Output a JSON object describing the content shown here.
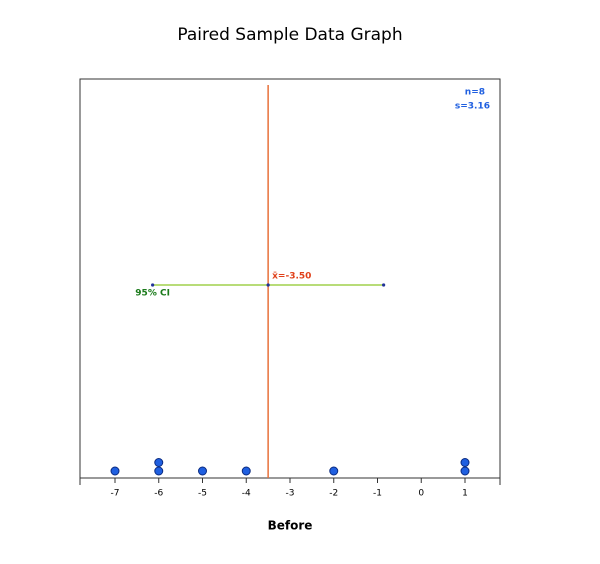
{
  "chart_data": {
    "type": "dotplot",
    "title": "Paired Sample Data Graph",
    "x_label": "Before",
    "values": [
      -7,
      -6,
      -6,
      -5,
      -4,
      -2,
      1,
      1
    ],
    "color": "#1f5fe0",
    "xlim": [
      -7.8,
      1.8
    ],
    "xticks": [
      -7,
      -6,
      -5,
      -4,
      -3,
      -2,
      -1,
      0,
      1
    ],
    "mean": {
      "value": -3.5,
      "label": "x̄=-3.50",
      "color": "#e8703a"
    },
    "ci": {
      "lower": -6.14,
      "upper": -0.86,
      "label": "95% CI",
      "color": "#b8dc78"
    },
    "stats": {
      "n": {
        "value": 8,
        "label": "n=8"
      },
      "s": {
        "value": 3.16,
        "label": "s=3.16"
      }
    }
  }
}
